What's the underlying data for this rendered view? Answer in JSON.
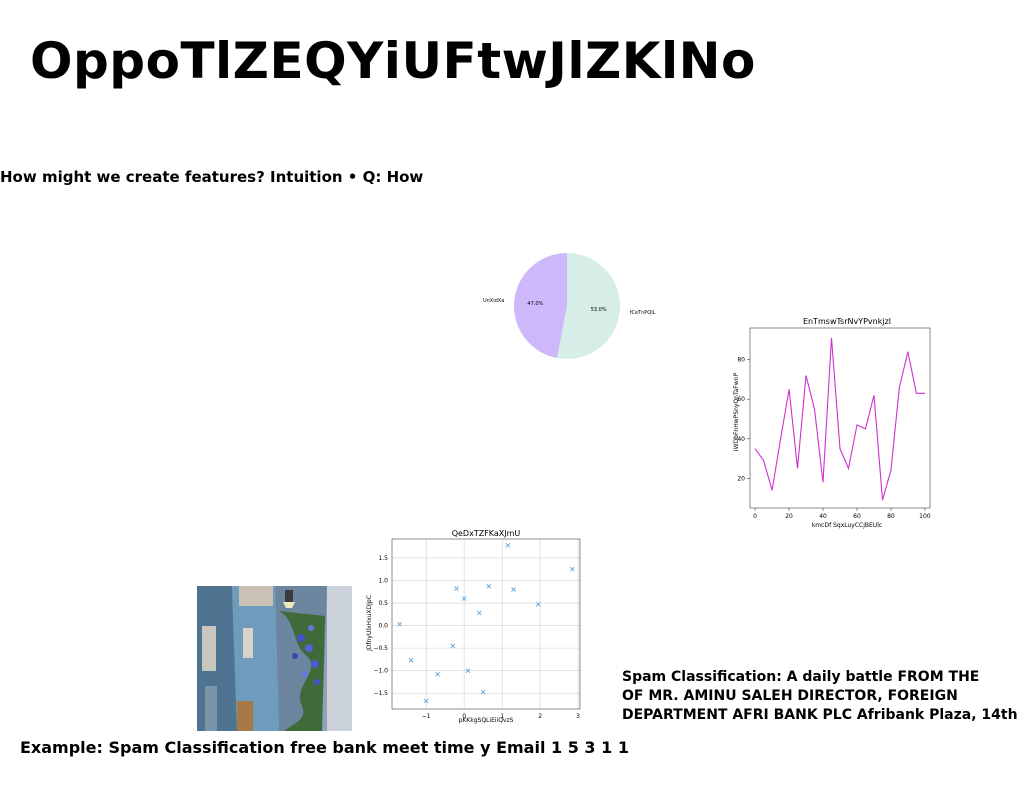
{
  "slide": {
    "title": "OppoTlZEQYiUFtwJlZKlNo",
    "subtitle": "How might we create features? Intuition • Q: How",
    "spam_lines": [
      "Spam Classification: A daily battle FROM THE",
      "OF MR. AMINU SALEH DIRECTOR, FOREIGN",
      "DEPARTMENT AFRI BANK PLC Afribank Plaza, 14th"
    ],
    "example": "Example: Spam Classification free bank meet time y Email 1 5 3 1 1"
  },
  "chart_data": [
    {
      "type": "pie",
      "labels": [
        "UnXidXa",
        "fCeTnPQlL"
      ],
      "values": [
        47.0,
        53.0
      ],
      "pct_labels": [
        "47.0%",
        "53.0%"
      ],
      "colors": [
        "#cdb8fb",
        "#d6ede8"
      ]
    },
    {
      "type": "line",
      "title": "EnTmswTsrNvYPvnkjzl",
      "xlabel": "kmcDf SqxLuyCCjBEUlc",
      "ylabel": "iWDbFnHwPSnyQnTaFwnP",
      "x": [
        0,
        5,
        10,
        15,
        20,
        25,
        30,
        35,
        40,
        45,
        50,
        55,
        60,
        65,
        70,
        75,
        80,
        85,
        90,
        95,
        100
      ],
      "y": [
        35,
        29,
        14,
        40,
        65,
        25,
        72,
        55,
        18,
        91,
        35,
        25,
        47,
        45,
        62,
        9,
        24,
        66,
        84,
        63,
        63
      ],
      "xticks": [
        "0",
        "20",
        "40",
        "60",
        "80",
        "100"
      ],
      "yticks": [
        "20",
        "40",
        "60",
        "80"
      ],
      "xlim": [
        -3,
        103
      ],
      "ylim": [
        5,
        96
      ],
      "color": "#cc33cc"
    },
    {
      "type": "scatter",
      "title": "QeDxTZFKaXJmU",
      "xlabel": "pKKkgSQLiEiiQvzS",
      "ylabel": "JDfnyUlxHxuXDJpC",
      "x": [
        -1.7,
        -1.4,
        -1.0,
        -0.7,
        -0.3,
        -0.2,
        0.0,
        0.1,
        0.4,
        0.5,
        0.65,
        1.15,
        1.3,
        1.95,
        2.85
      ],
      "y": [
        0.03,
        -0.77,
        -1.67,
        -1.08,
        -0.45,
        0.82,
        0.6,
        -1.0,
        0.28,
        -1.48,
        0.87,
        1.78,
        0.8,
        0.47,
        1.25
      ],
      "xticks": [
        "−1",
        "0",
        "1",
        "2",
        "3"
      ],
      "yticks": [
        "−1.5",
        "−1.0",
        "−0.5",
        "0.0",
        "0.5",
        "1.0",
        "1.5"
      ],
      "xlim": [
        -1.9,
        3.05
      ],
      "ylim": [
        -1.85,
        1.92
      ],
      "grid": true,
      "color": "#5aa9e6"
    }
  ]
}
